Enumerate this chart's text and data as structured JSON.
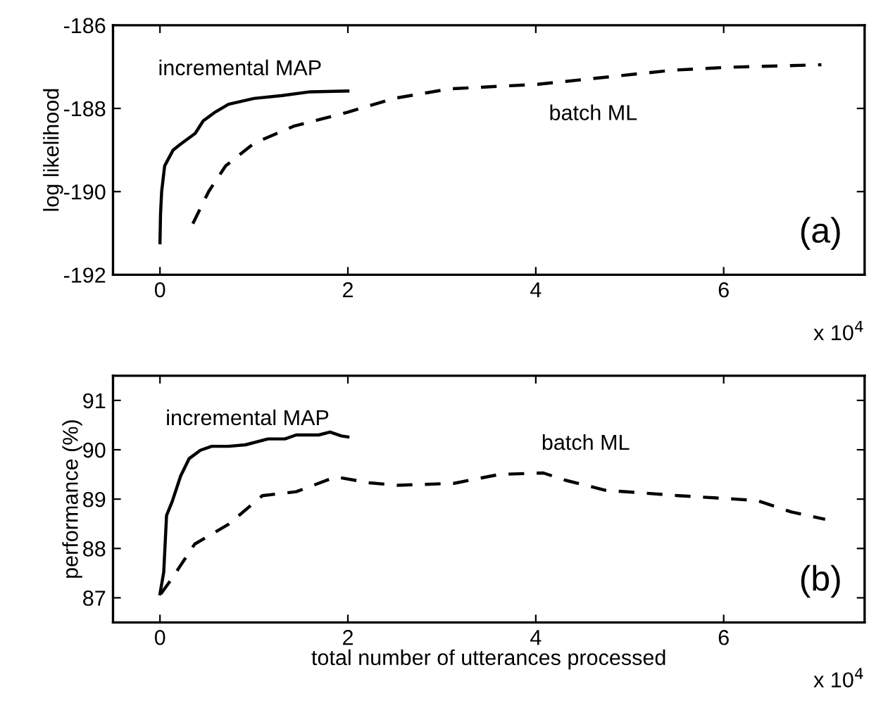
{
  "chart_data": [
    {
      "type": "line",
      "ylabel": "log likelihood",
      "xlim": [
        -0.5,
        7.5
      ],
      "xticks": [
        0,
        2,
        4,
        6
      ],
      "ylim": [
        -192,
        -186
      ],
      "yticks": [
        -192,
        -190,
        -188,
        -186
      ],
      "grid": false,
      "legend": false,
      "marker": "none",
      "annotations": [
        "(a)",
        "x 10$^{4}$"
      ],
      "series": [
        {
          "name": "incremental MAP",
          "color": "#000000",
          "line_style": "solid",
          "x": [
            0,
            0.006,
            0.018,
            0.05,
            0.14,
            0.23,
            0.375,
            0.46,
            0.58,
            0.73,
            1.0,
            1.3,
            1.6,
            2.0
          ],
          "values": [
            -191.23,
            -190.53,
            -189.99,
            -189.38,
            -189.0,
            -188.84,
            -188.6,
            -188.3,
            -188.1,
            -187.9,
            -187.76,
            -187.69,
            -187.6,
            -187.58
          ]
        },
        {
          "name": "batch ML",
          "color": "#000000",
          "line_style": "dashed",
          "x": [
            0.35,
            0.52,
            0.7,
            1.0,
            1.42,
            2.0,
            2.49,
            3.08,
            4.02,
            4.87,
            5.46,
            6.06,
            7.04
          ],
          "values": [
            -190.77,
            -189.99,
            -189.38,
            -188.84,
            -188.43,
            -188.09,
            -187.76,
            -187.53,
            -187.42,
            -187.22,
            -187.08,
            -187.01,
            -186.95
          ]
        }
      ]
    },
    {
      "type": "line",
      "xlabel": "total number of utterances processed",
      "ylabel": "performance (%)",
      "xlim": [
        -0.5,
        7.5
      ],
      "xticks": [
        0,
        2,
        4,
        6
      ],
      "ylim": [
        86.5,
        91.5
      ],
      "yticks": [
        87,
        88,
        89,
        90,
        91
      ],
      "grid": false,
      "legend": false,
      "marker": "none",
      "annotations": [
        "(b)",
        "x 10$^{4}$"
      ],
      "series": [
        {
          "name": "incremental MAP",
          "color": "#000000",
          "line_style": "solid",
          "x": [
            0,
            0.04,
            0.07,
            0.13,
            0.22,
            0.31,
            0.43,
            0.55,
            0.73,
            0.91,
            1.15,
            1.33,
            1.45,
            1.69,
            1.81,
            1.93,
            2.0
          ],
          "values": [
            87.08,
            87.52,
            88.67,
            88.95,
            89.47,
            89.82,
            89.99,
            90.07,
            90.07,
            90.1,
            90.22,
            90.22,
            90.3,
            90.3,
            90.36,
            90.28,
            90.26
          ]
        },
        {
          "name": "batch ML",
          "color": "#000000",
          "line_style": "dashed",
          "x": [
            0.01,
            0.13,
            0.37,
            0.73,
            1.09,
            1.45,
            1.87,
            2.23,
            2.53,
            3.13,
            3.61,
            4.08,
            4.32,
            4.74,
            5.52,
            6.12,
            6.36,
            6.72,
            7.08
          ],
          "values": [
            87.08,
            87.4,
            88.09,
            88.49,
            89.07,
            89.15,
            89.45,
            89.33,
            89.28,
            89.32,
            89.5,
            89.53,
            89.38,
            89.18,
            89.07,
            89.0,
            88.97,
            88.74,
            88.59
          ]
        }
      ]
    }
  ]
}
